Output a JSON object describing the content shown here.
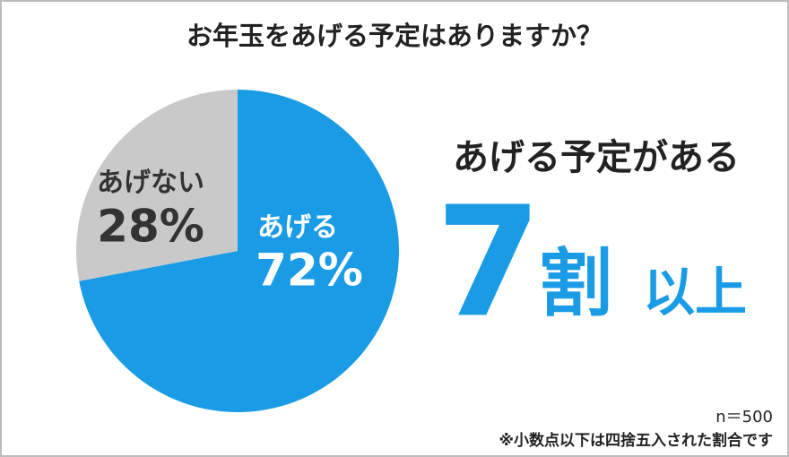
{
  "chart_data": {
    "type": "pie",
    "title": "お年玉をあげる予定はありますか？",
    "categories": [
      "あげる",
      "あげない"
    ],
    "values": [
      72,
      28
    ],
    "value_labels": [
      "72%",
      "28%"
    ],
    "colors": [
      "#1a9be6",
      "#c9c9c9"
    ],
    "annotations": {
      "headline": "あげる予定がある",
      "big": [
        "7",
        "割",
        "以上"
      ]
    },
    "sample": "n＝500",
    "footnote": "※小数点以下は四捨五入された割合です"
  }
}
